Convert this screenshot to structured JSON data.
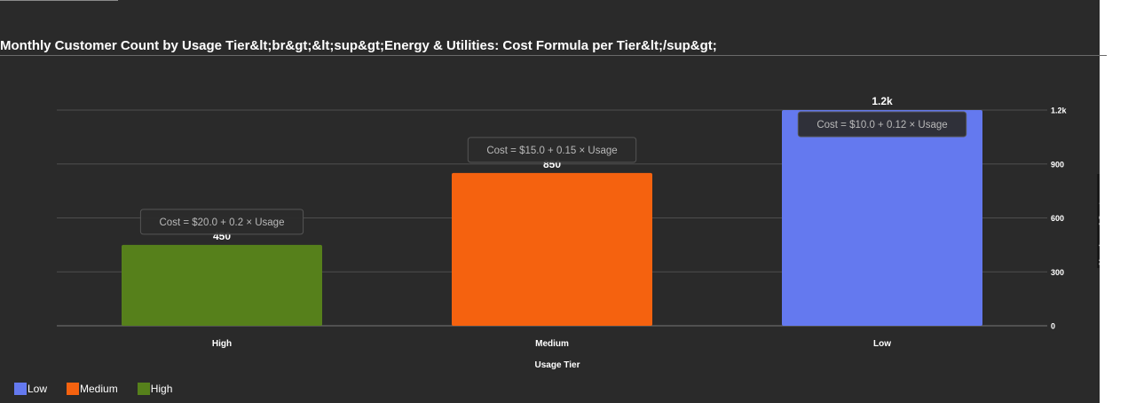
{
  "title": "Monthly Customer Count by Usage Tier&lt;br&gt;&lt;sup&gt;Energy & Utilities: Cost Formula per Tier&lt;/sup&gt;",
  "chart_data": {
    "type": "bar",
    "categories": [
      "High",
      "Medium",
      "Low"
    ],
    "values": [
      450,
      850,
      1200
    ],
    "value_labels": [
      "450",
      "850",
      "1.2k"
    ],
    "colors": [
      "#56801b",
      "#f5620f",
      "#6479ef"
    ],
    "xlabel": "Usage Tier",
    "ylabel": "Number of Customers",
    "ylim": [
      0,
      1200
    ],
    "y_ticks": [
      0,
      300,
      600,
      900,
      1200
    ],
    "y_tick_labels": [
      "0",
      "300",
      "600",
      "900",
      "1.2k"
    ],
    "y_axis_side": "right",
    "grid": true,
    "annotations": [
      "Cost = $20.0 + 0.2 × Usage",
      "Cost = $15.0 + 0.15 × Usage",
      "Cost = $10.0 + 0.12 × Usage"
    ],
    "legend": {
      "placement": "bottom-left",
      "items": [
        {
          "label": "Low",
          "color": "#6479ef"
        },
        {
          "label": "Medium",
          "color": "#f5620f"
        },
        {
          "label": "High",
          "color": "#56801b"
        }
      ]
    }
  }
}
